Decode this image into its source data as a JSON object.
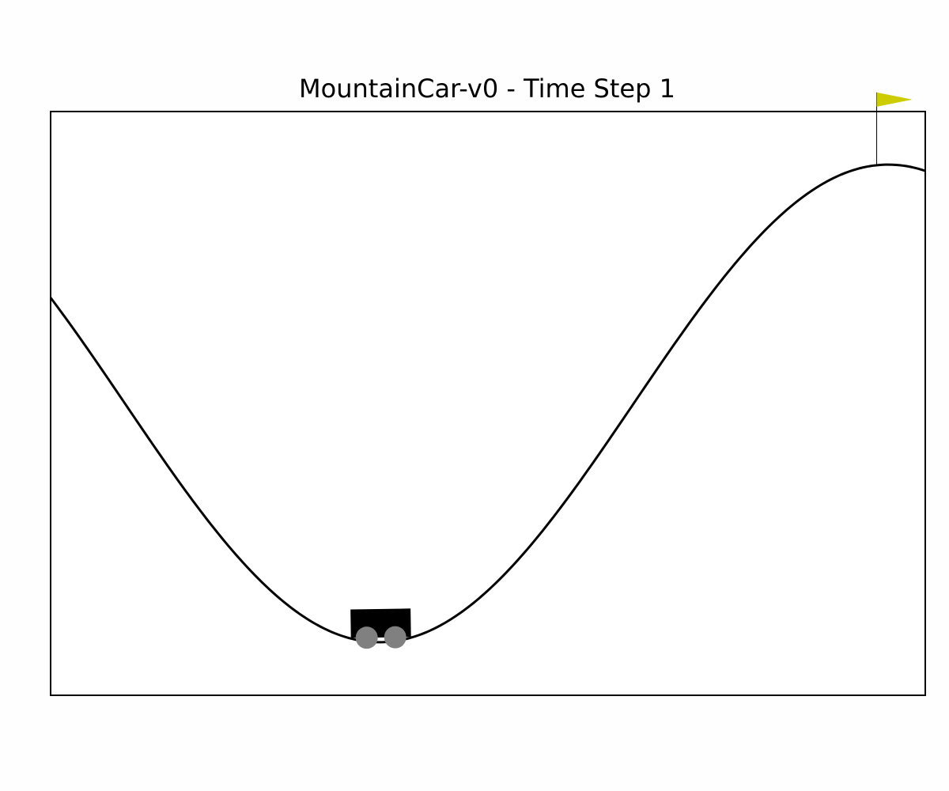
{
  "title": "MountainCar-v0 - Time Step 1",
  "environment": {
    "name": "MountainCar-v0",
    "time_step": 1,
    "car_position": -0.52,
    "goal_position": 0.5,
    "x_range": [
      -1.2,
      0.6
    ]
  },
  "colors": {
    "background": "#fefefe",
    "frame": "#000000",
    "track": "#000000",
    "car_body": "#000000",
    "wheel": "#808080",
    "flag": "#cccc00",
    "flagpole": "#000000"
  },
  "icons": {
    "car": "car-icon",
    "flag": "flag-icon"
  }
}
